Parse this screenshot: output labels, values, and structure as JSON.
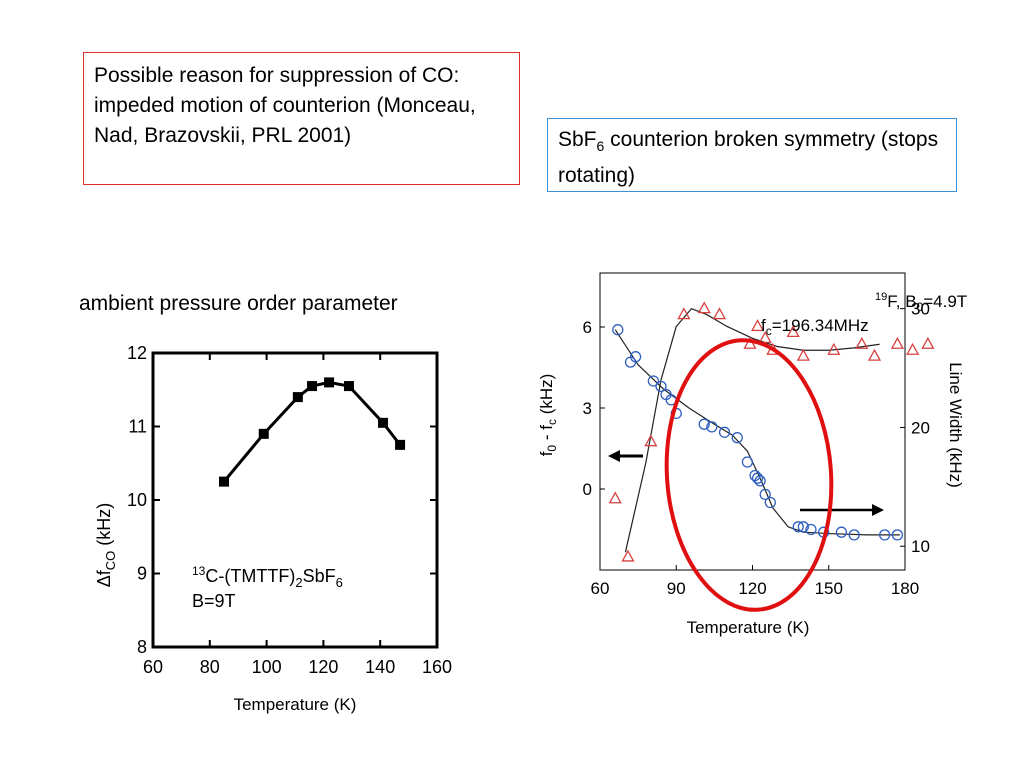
{
  "slide": {
    "note_left": "Possible reason for suppression of CO: impeded motion of counterion (Monceau, Nad, Brazovskii, PRL 2001)",
    "note_right_prefix": "SbF",
    "note_right_sub": "6",
    "note_right_suffix": " counterion broken symmetry (stops rotating)",
    "heading_left": "ambient pressure order parameter",
    "colors": {
      "note_left_border": "#e0302b",
      "note_right_border": "#3d8fd6",
      "ellipse": "#e01010"
    }
  },
  "chart_data": [
    {
      "type": "line",
      "xlabel": "Temperature (K)",
      "ylabel": {
        "pre": "Δf",
        "sub": "CO",
        "post": " (kHz)"
      },
      "xlim": [
        60,
        160
      ],
      "ylim": [
        8,
        12
      ],
      "xticks": [
        60,
        80,
        100,
        120,
        140,
        160
      ],
      "yticks": [
        8,
        9,
        10,
        11,
        12
      ],
      "series": [
        {
          "marker": "square",
          "x": [
            85,
            99,
            111,
            116,
            122,
            129,
            141,
            147
          ],
          "y": [
            10.25,
            10.9,
            11.4,
            11.55,
            11.6,
            11.55,
            11.05,
            10.75
          ]
        }
      ],
      "annotation": {
        "line1_sup": "13",
        "line1_a": "C-(TMTTF)",
        "line1_sub": "2",
        "line1_b": "SbF",
        "line1_sub2": "6",
        "line2": "B=9T"
      }
    },
    {
      "type": "scatter",
      "xlabel": "Temperature (K)",
      "ylabel_left": {
        "a": "f",
        "sub1": "0",
        "b": " - f",
        "sub2": "c",
        "c": " (kHz)"
      },
      "ylabel_right": "Line Width (kHz)",
      "xlim": [
        60,
        180
      ],
      "ylim_left": [
        -3,
        8
      ],
      "ylim_right": [
        8,
        33
      ],
      "xticks": [
        60,
        90,
        120,
        150,
        180
      ],
      "yticks_left": [
        0,
        3,
        6
      ],
      "yticks_right": [
        10,
        20,
        30
      ],
      "legend_text": {
        "line1_sup": "19",
        "line1_a": "F,  B",
        "line1_sub": "0",
        "line1_b": "=4.9T",
        "line2_a": "f",
        "line2_sub": "c",
        "line2_b": "=196.34MHz"
      },
      "series": [
        {
          "name": "f0 - fc",
          "marker": "circle",
          "color": "#2f5fc0",
          "axis": "left",
          "x": [
            67,
            72,
            74,
            81,
            84,
            86,
            88,
            90,
            101,
            104,
            109,
            114,
            118,
            121,
            122,
            123,
            125,
            127,
            138,
            140,
            143,
            148,
            155,
            160,
            172,
            177
          ],
          "y": [
            5.9,
            4.7,
            4.9,
            4.0,
            3.8,
            3.5,
            3.3,
            2.8,
            2.4,
            2.3,
            2.1,
            1.9,
            1.0,
            0.5,
            0.4,
            0.3,
            -0.2,
            -0.5,
            -1.4,
            -1.4,
            -1.5,
            -1.6,
            -1.6,
            -1.7,
            -1.7,
            -1.7
          ],
          "fit_x": [
            66,
            75,
            85,
            95,
            105,
            112,
            118,
            123,
            128,
            134,
            140,
            150,
            165,
            178
          ],
          "fit_y": [
            5.9,
            4.6,
            3.7,
            3.0,
            2.4,
            2.0,
            1.4,
            0.4,
            -0.7,
            -1.4,
            -1.6,
            -1.65,
            -1.7,
            -1.7
          ]
        },
        {
          "name": "Line Width",
          "marker": "triangle",
          "color": "#d84040",
          "axis": "right",
          "x": [
            66,
            71,
            80,
            93,
            101,
            107,
            119,
            122,
            125,
            128,
            136,
            140,
            152,
            163,
            168,
            177,
            183,
            189
          ],
          "y": [
            14.0,
            9.1,
            18.8,
            29.5,
            30.0,
            29.5,
            27.0,
            28.5,
            27.5,
            26.5,
            28.0,
            26.0,
            26.5,
            27.0,
            26.0,
            27.0,
            26.5,
            27.0
          ],
          "fit_x": [
            70,
            78,
            84,
            90,
            96,
            102,
            110,
            120,
            130,
            140,
            150,
            160,
            170
          ],
          "fit_y": [
            9.5,
            17.0,
            24.0,
            28.5,
            30.0,
            29.5,
            28.5,
            27.5,
            26.8,
            26.5,
            26.5,
            26.7,
            27.0
          ]
        }
      ]
    }
  ]
}
